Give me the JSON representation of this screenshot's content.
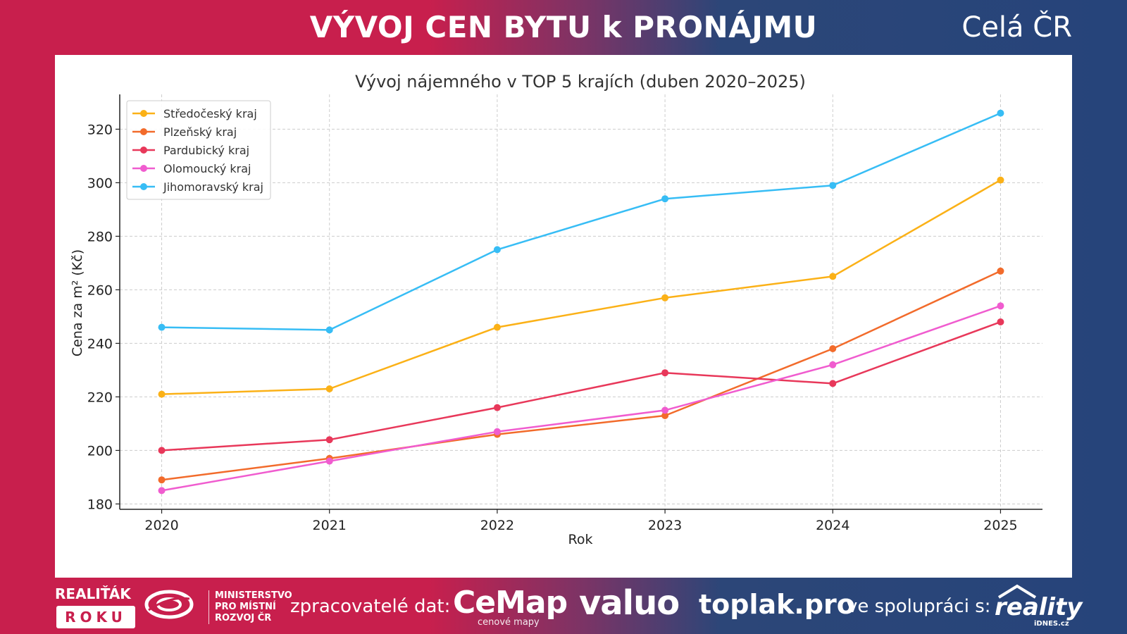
{
  "header": {
    "title": "VÝVOJ CEN BYTU k PRONÁJMU",
    "region": "Celá ČR"
  },
  "chart_data": {
    "type": "line",
    "title": "Vývoj nájemného v TOP 5 krajích (duben 2020–2025)",
    "xlabel": "Rok",
    "ylabel": "Cena za m² (Kč)",
    "x": [
      2020,
      2021,
      2022,
      2023,
      2024,
      2025
    ],
    "xlim": [
      2019.75,
      2025.25
    ],
    "ylim": [
      178,
      333
    ],
    "yticks": [
      180,
      200,
      220,
      240,
      260,
      280,
      300,
      320
    ],
    "grid": true,
    "legend_position": "top-left",
    "series": [
      {
        "name": "Středočeský kraj",
        "color": "#fbb117",
        "values": [
          221,
          223,
          246,
          257,
          265,
          301
        ]
      },
      {
        "name": "Plzeňský kraj",
        "color": "#f26b2b",
        "values": [
          189,
          197,
          206,
          213,
          238,
          267
        ]
      },
      {
        "name": "Pardubický kraj",
        "color": "#e8385a",
        "values": [
          200,
          204,
          216,
          229,
          225,
          248
        ]
      },
      {
        "name": "Olomoucký kraj",
        "color": "#f05ccf",
        "values": [
          185,
          196,
          207,
          215,
          232,
          254
        ]
      },
      {
        "name": "Jihomoravský kraj",
        "color": "#37bdf5",
        "values": [
          246,
          245,
          275,
          294,
          299,
          326
        ]
      }
    ]
  },
  "footer": {
    "realitak": "REALIŤÁK",
    "roku": "ROKU",
    "ministry": [
      "MINISTERSTVO",
      "PRO MÍSTNÍ",
      "ROZVOJ ČR"
    ],
    "processors_label": "zpracovatelé dat:",
    "cemap": "CeMap",
    "cemap_sub": "cenové mapy",
    "valuo": "valuo",
    "toplak": "toplak.pro",
    "collab_label": "ve spolupráci s:",
    "reality": "reality",
    "reality_sub": "iDNES.cz"
  }
}
